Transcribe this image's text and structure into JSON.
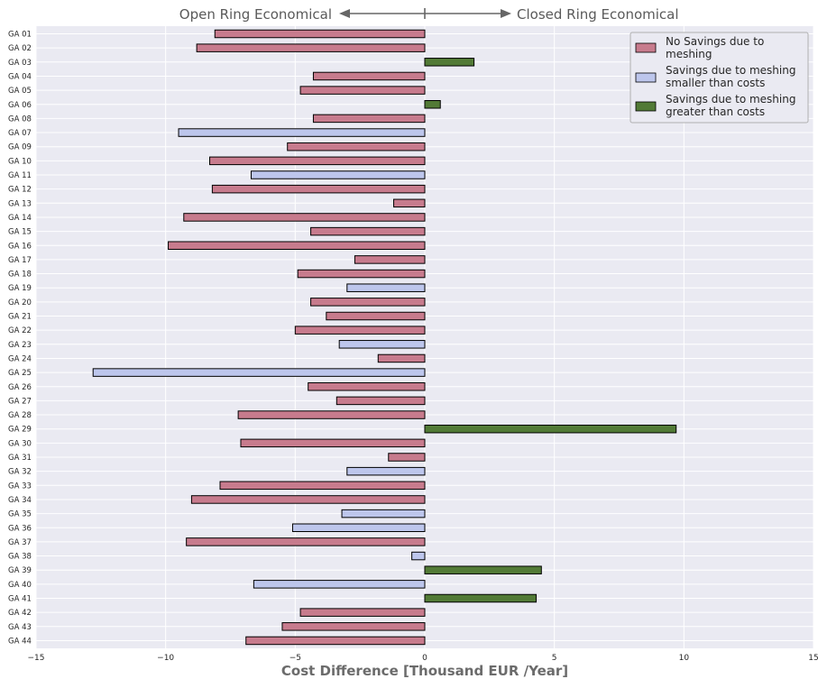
{
  "chart_data": {
    "type": "bar",
    "orientation": "horizontal",
    "xlabel": "Cost Difference [Thousand EUR /Year]",
    "xlim": [
      -15,
      15
    ],
    "xticks": [
      -15,
      -10,
      -5,
      0,
      5,
      10,
      15
    ],
    "xtick_labels": [
      "−15",
      "−10",
      "−5",
      "0",
      "5",
      "10",
      "15"
    ],
    "grid": true,
    "legend_position": "top-right",
    "annotations": {
      "left": "Open Ring Economical",
      "right": "Closed Ring Economical"
    },
    "colors": {
      "no_savings": "#c77b8d",
      "savings_smaller": "#bdc6ec",
      "savings_greater": "#527a36",
      "background": "#eaeaf2",
      "annotation": "#666666"
    },
    "legend": [
      {
        "key": "no_savings",
        "line1": "No Savings due to",
        "line2": "meshing"
      },
      {
        "key": "savings_smaller",
        "line1": "Savings due to meshing",
        "line2": "smaller than costs"
      },
      {
        "key": "savings_greater",
        "line1": "Savings due to meshing",
        "line2": "greater than costs"
      }
    ],
    "bars": [
      {
        "label": "GA 01",
        "value": -8.1,
        "cat": "no_savings"
      },
      {
        "label": "GA 02",
        "value": -8.8,
        "cat": "no_savings"
      },
      {
        "label": "GA 03",
        "value": 1.9,
        "cat": "savings_greater"
      },
      {
        "label": "GA 04",
        "value": -4.3,
        "cat": "no_savings"
      },
      {
        "label": "GA 05",
        "value": -4.8,
        "cat": "no_savings"
      },
      {
        "label": "GA 06",
        "value": 0.6,
        "cat": "savings_greater"
      },
      {
        "label": "GA 08",
        "value": -4.3,
        "cat": "no_savings"
      },
      {
        "label": "GA 07",
        "value": -9.5,
        "cat": "savings_smaller"
      },
      {
        "label": "GA 09",
        "value": -5.3,
        "cat": "no_savings"
      },
      {
        "label": "GA 10",
        "value": -8.3,
        "cat": "no_savings"
      },
      {
        "label": "GA 11",
        "value": -6.7,
        "cat": "savings_smaller"
      },
      {
        "label": "GA 12",
        "value": -8.2,
        "cat": "no_savings"
      },
      {
        "label": "GA 13",
        "value": -1.2,
        "cat": "no_savings"
      },
      {
        "label": "GA 14",
        "value": -9.3,
        "cat": "no_savings"
      },
      {
        "label": "GA 15",
        "value": -4.4,
        "cat": "no_savings"
      },
      {
        "label": "GA 16",
        "value": -9.9,
        "cat": "no_savings"
      },
      {
        "label": "GA 17",
        "value": -2.7,
        "cat": "no_savings"
      },
      {
        "label": "GA 18",
        "value": -4.9,
        "cat": "no_savings"
      },
      {
        "label": "GA 19",
        "value": -3.0,
        "cat": "savings_smaller"
      },
      {
        "label": "GA 20",
        "value": -4.4,
        "cat": "no_savings"
      },
      {
        "label": "GA 21",
        "value": -3.8,
        "cat": "no_savings"
      },
      {
        "label": "GA 22",
        "value": -5.0,
        "cat": "no_savings"
      },
      {
        "label": "GA 23",
        "value": -3.3,
        "cat": "savings_smaller"
      },
      {
        "label": "GA 24",
        "value": -1.8,
        "cat": "no_savings"
      },
      {
        "label": "GA 25",
        "value": -12.8,
        "cat": "savings_smaller"
      },
      {
        "label": "GA 26",
        "value": -4.5,
        "cat": "no_savings"
      },
      {
        "label": "GA 27",
        "value": -3.4,
        "cat": "no_savings"
      },
      {
        "label": "GA 28",
        "value": -7.2,
        "cat": "no_savings"
      },
      {
        "label": "GA 29",
        "value": 9.7,
        "cat": "savings_greater"
      },
      {
        "label": "GA 30",
        "value": -7.1,
        "cat": "no_savings"
      },
      {
        "label": "GA 31",
        "value": -1.4,
        "cat": "no_savings"
      },
      {
        "label": "GA 32",
        "value": -3.0,
        "cat": "savings_smaller"
      },
      {
        "label": "GA 33",
        "value": -7.9,
        "cat": "no_savings"
      },
      {
        "label": "GA 34",
        "value": -9.0,
        "cat": "no_savings"
      },
      {
        "label": "GA 35",
        "value": -3.2,
        "cat": "savings_smaller"
      },
      {
        "label": "GA 36",
        "value": -5.1,
        "cat": "savings_smaller"
      },
      {
        "label": "GA 37",
        "value": -9.2,
        "cat": "no_savings"
      },
      {
        "label": "GA 38",
        "value": -0.5,
        "cat": "savings_smaller"
      },
      {
        "label": "GA 39",
        "value": 4.5,
        "cat": "savings_greater"
      },
      {
        "label": "GA 40",
        "value": -6.6,
        "cat": "savings_smaller"
      },
      {
        "label": "GA 41",
        "value": 4.3,
        "cat": "savings_greater"
      },
      {
        "label": "GA 42",
        "value": -4.8,
        "cat": "no_savings"
      },
      {
        "label": "GA 43",
        "value": -5.5,
        "cat": "no_savings"
      },
      {
        "label": "GA 44",
        "value": -6.9,
        "cat": "no_savings"
      }
    ]
  }
}
